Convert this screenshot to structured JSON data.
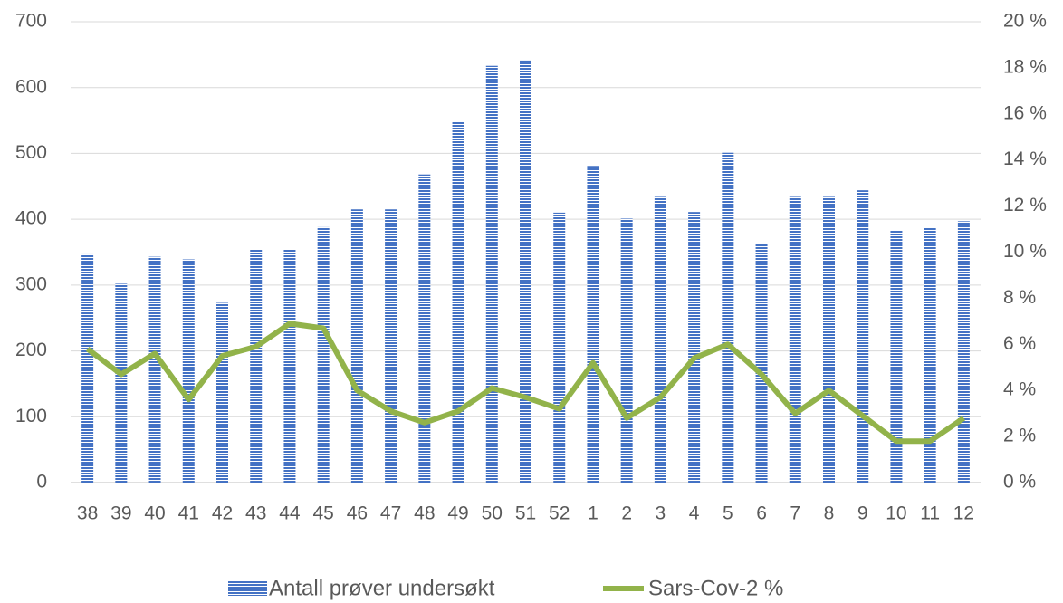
{
  "chart_data": {
    "type": "bar",
    "categories": [
      "38",
      "39",
      "40",
      "41",
      "42",
      "43",
      "44",
      "45",
      "46",
      "47",
      "48",
      "49",
      "50",
      "51",
      "52",
      "1",
      "2",
      "3",
      "4",
      "5",
      "6",
      "7",
      "8",
      "9",
      "10",
      "11",
      "12"
    ],
    "series": [
      {
        "name": "Antall prøver undersøkt",
        "type": "bar",
        "color": "#4472c4",
        "values": [
          348,
          302,
          343,
          339,
          273,
          354,
          354,
          388,
          415,
          415,
          468,
          548,
          633,
          641,
          410,
          481,
          401,
          434,
          411,
          501,
          363,
          434,
          434,
          444,
          383,
          387,
          397
        ]
      },
      {
        "name": "Sars-Cov-2 %",
        "type": "line",
        "axis": "y2",
        "color": "#92b34a",
        "values": [
          5.8,
          4.7,
          5.6,
          3.6,
          5.5,
          5.9,
          6.9,
          6.7,
          4.0,
          3.1,
          2.6,
          3.1,
          4.1,
          3.7,
          3.2,
          5.2,
          2.8,
          3.7,
          5.4,
          6.0,
          4.7,
          3.0,
          4.0,
          2.9,
          1.8,
          1.8,
          2.8
        ]
      }
    ],
    "ylim": [
      0,
      700
    ],
    "yticks": [
      0,
      100,
      200,
      300,
      400,
      500,
      600,
      700
    ],
    "y2lim": [
      0,
      20
    ],
    "y2ticks": [
      {
        "value": 0,
        "label": "0 %"
      },
      {
        "value": 2,
        "label": "2 %"
      },
      {
        "value": 4,
        "label": "4 %"
      },
      {
        "value": 6,
        "label": "6 %"
      },
      {
        "value": 8,
        "label": "8 %"
      },
      {
        "value": 10,
        "label": "10 %"
      },
      {
        "value": 12,
        "label": "12 %"
      },
      {
        "value": 14,
        "label": "14 %"
      },
      {
        "value": 16,
        "label": "16 %"
      },
      {
        "value": 18,
        "label": "18 %"
      },
      {
        "value": 20,
        "label": "20 %"
      }
    ],
    "grid": true,
    "legend": "bottom"
  }
}
